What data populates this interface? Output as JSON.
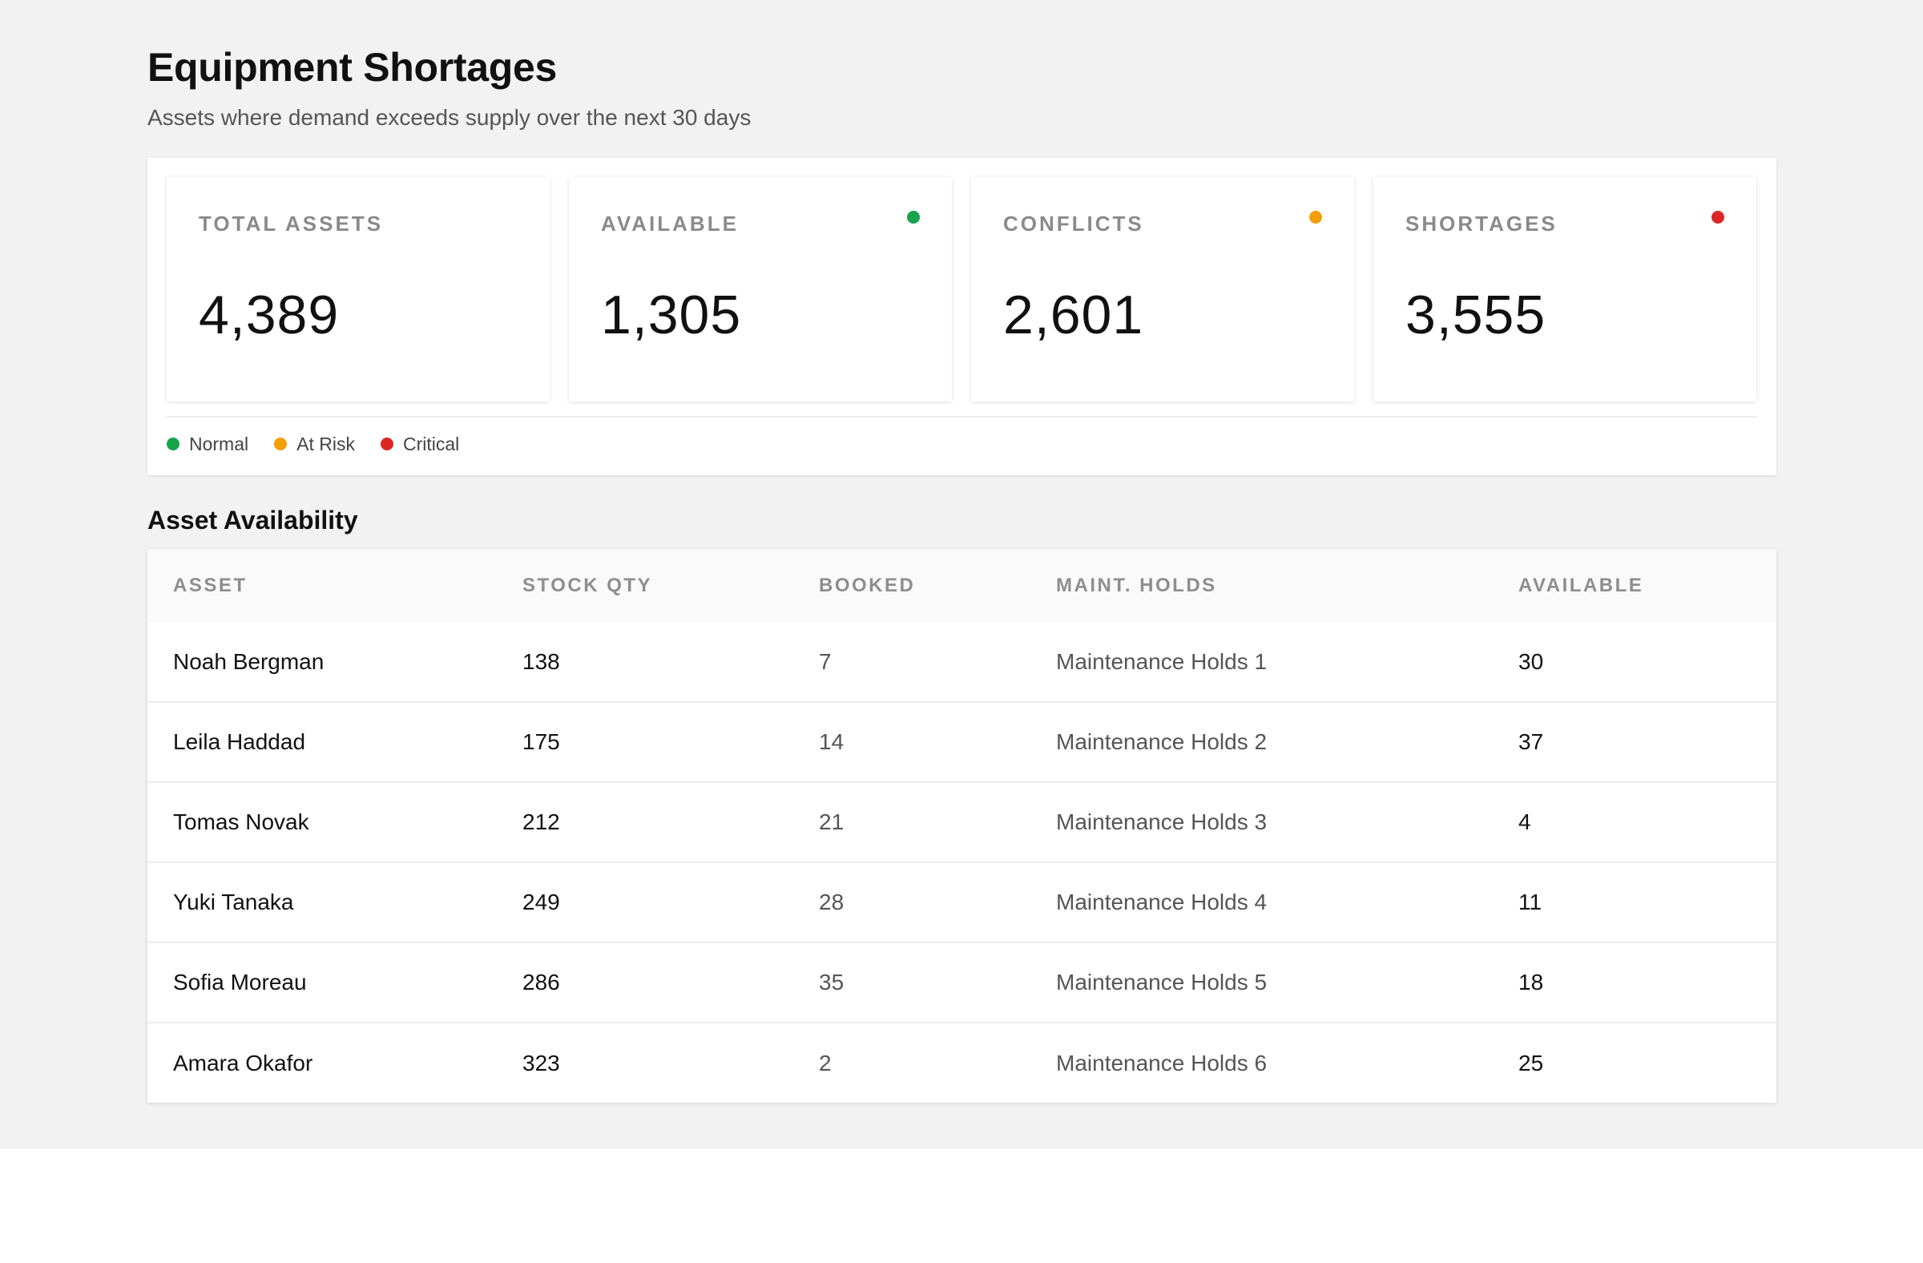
{
  "header": {
    "title": "Equipment Shortages",
    "subtitle": "Assets where demand exceeds supply over the next 30 days"
  },
  "kpis": [
    {
      "label": "TOTAL ASSETS",
      "value": "4,389",
      "status": null
    },
    {
      "label": "AVAILABLE",
      "value": "1,305",
      "status": "normal"
    },
    {
      "label": "CONFLICTS",
      "value": "2,601",
      "status": "at-risk"
    },
    {
      "label": "SHORTAGES",
      "value": "3,555",
      "status": "critical"
    }
  ],
  "legend": [
    {
      "label": "Normal",
      "color": "#16a34a"
    },
    {
      "label": "At Risk",
      "color": "#f59e0b"
    },
    {
      "label": "Critical",
      "color": "#dc2626"
    }
  ],
  "colors": {
    "normal": "#16a34a",
    "at-risk": "#f59e0b",
    "critical": "#dc2626"
  },
  "table": {
    "title": "Asset Availability",
    "columns": [
      "ASSET",
      "STOCK QTY",
      "BOOKED",
      "MAINT. HOLDS",
      "AVAILABLE"
    ],
    "rows": [
      [
        "Noah Bergman",
        "138",
        "7",
        "Maintenance Holds 1",
        "30"
      ],
      [
        "Leila Haddad",
        "175",
        "14",
        "Maintenance Holds 2",
        "37"
      ],
      [
        "Tomas Novak",
        "212",
        "21",
        "Maintenance Holds 3",
        "4"
      ],
      [
        "Yuki Tanaka",
        "249",
        "28",
        "Maintenance Holds 4",
        "11"
      ],
      [
        "Sofia Moreau",
        "286",
        "35",
        "Maintenance Holds 5",
        "18"
      ],
      [
        "Amara Okafor",
        "323",
        "2",
        "Maintenance Holds 6",
        "25"
      ]
    ]
  }
}
